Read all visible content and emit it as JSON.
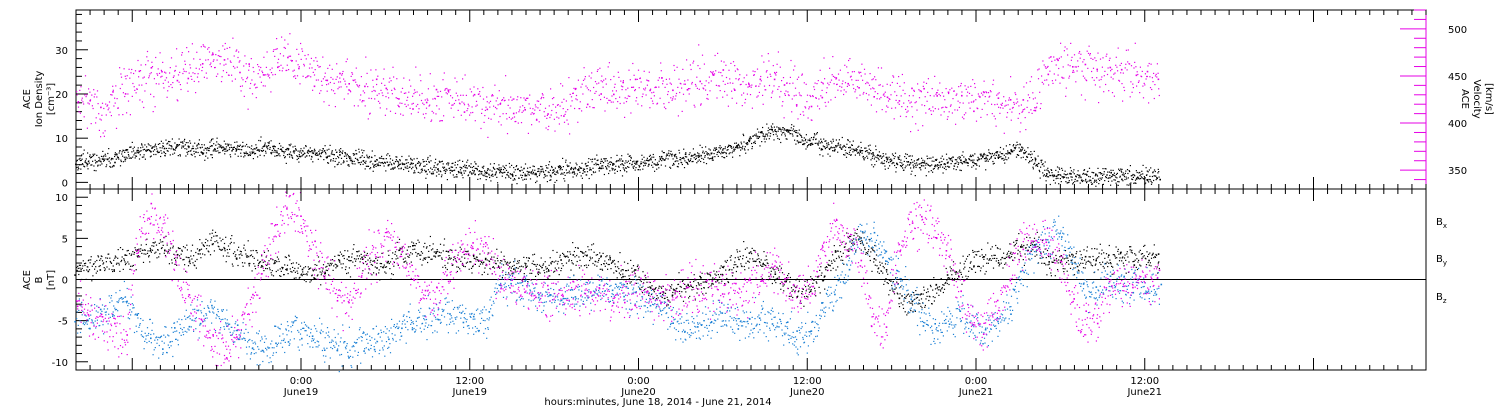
{
  "chart_data": [
    {
      "type": "scatter",
      "panel": "top",
      "left_axis_label_lines": [
        "ACE",
        "Ion Density",
        "[cm⁻³]"
      ],
      "right_axis_label_lines": [
        "ACE",
        "Velocity",
        "[km/s]"
      ],
      "ylim_left": [
        -1.5,
        39
      ],
      "ylim_right": [
        330,
        520
      ],
      "left_ticks": [
        "0",
        "10",
        "20",
        "30"
      ],
      "right_ticks": [
        "350",
        "400",
        "450",
        "500"
      ],
      "series": [
        {
          "axis": "left",
          "color": "#000000",
          "data_end_hour": 61,
          "values": [
            4.8,
            4.6,
            5.0,
            5.5,
            6.2,
            6.8,
            7.4,
            7.8,
            8.3,
            8.0,
            7.6,
            7.9,
            8.1,
            7.5,
            7.2,
            7.8,
            7.4,
            6.8,
            7.0,
            6.6,
            6.3,
            5.9,
            5.5,
            5.1,
            4.8,
            4.5,
            4.1,
            4.0,
            3.6,
            3.4,
            3.2,
            3.0,
            2.9,
            2.7,
            2.5,
            2.4,
            2.3,
            2.4,
            2.6,
            2.8,
            3.0,
            3.3,
            3.7,
            4.0,
            4.3,
            4.6,
            4.9,
            5.2,
            5.4,
            5.7,
            6.0,
            6.4,
            7.2,
            8.2,
            9.5,
            10.8,
            12.0,
            11.5,
            10.2,
            9.0,
            8.6,
            8.2,
            7.9,
            7.4,
            6.0,
            5.0,
            4.6,
            4.3,
            4.2,
            4.4,
            4.6,
            4.9,
            5.2,
            5.6,
            6.0,
            6.8,
            7.8,
            5.0,
            2.0,
            1.5,
            1.4,
            1.4,
            1.4,
            1.4,
            1.4,
            1.4,
            1.5,
            1.5
          ]
        },
        {
          "axis": "right",
          "color": "#e600e6",
          "data_end_hour": 61,
          "values": [
            430,
            420,
            412,
            425,
            438,
            444,
            448,
            452,
            455,
            460,
            462,
            465,
            470,
            458,
            452,
            455,
            465,
            470,
            460,
            452,
            447,
            445,
            440,
            437,
            436,
            432,
            430,
            428,
            425,
            426,
            424,
            422,
            421,
            419,
            417,
            415,
            414,
            413,
            412,
            418,
            425,
            432,
            436,
            438,
            437,
            435,
            436,
            439,
            441,
            445,
            448,
            452,
            446,
            440,
            442,
            444,
            447,
            441,
            431,
            424,
            438,
            444,
            445,
            441,
            437,
            433,
            430,
            427,
            426,
            425,
            424,
            423,
            424,
            422,
            420,
            421,
            415,
            425,
            450,
            462,
            460,
            458,
            456,
            455,
            453,
            452,
            450,
            450
          ]
        }
      ]
    },
    {
      "type": "scatter",
      "panel": "bottom",
      "y_axis_label_lines": [
        "ACE",
        "B",
        "[nT]"
      ],
      "ylim": [
        -11,
        11
      ],
      "ticks": [
        "-10",
        "-5",
        "0",
        "5",
        "10"
      ],
      "zero_line": true,
      "series": [
        {
          "name": "Bx",
          "label": "B",
          "subscript": "x",
          "color": "#000000",
          "data_end_hour": 61,
          "values": [
            1.0,
            1.5,
            2.0,
            1.8,
            2.5,
            3.2,
            3.8,
            4.2,
            3.0,
            2.5,
            3.6,
            4.5,
            4.0,
            3.2,
            2.8,
            2.0,
            1.6,
            1.2,
            1.0,
            0.8,
            1.2,
            1.8,
            2.6,
            2.4,
            2.0,
            1.8,
            3.2,
            3.5,
            3.4,
            3.0,
            2.8,
            2.5,
            2.3,
            2.2,
            2.0,
            1.8,
            1.6,
            1.5,
            1.8,
            2.2,
            2.6,
            2.8,
            2.4,
            2.0,
            1.2,
            0.5,
            -0.8,
            -1.5,
            -1.2,
            -1.0,
            -0.5,
            0.2,
            1.0,
            2.0,
            3.0,
            2.2,
            1.0,
            -0.5,
            -1.5,
            -0.8,
            0.5,
            2.8,
            4.2,
            4.8,
            3.0,
            0.5,
            -1.5,
            -2.8,
            -2.2,
            -1.2,
            0.0,
            1.0,
            2.0,
            2.5,
            2.8,
            3.2,
            3.8,
            4.2,
            2.0,
            2.2,
            2.4,
            2.6,
            2.5,
            2.6,
            2.7,
            2.6,
            2.5,
            2.4
          ]
        },
        {
          "name": "By",
          "label": "B",
          "subscript": "y",
          "color": "#1a7fd4",
          "data_end_hour": 61,
          "values": [
            -4.5,
            -5.0,
            -4.0,
            -3.5,
            -2.5,
            -5.0,
            -6.8,
            -7.5,
            -6.5,
            -5.0,
            -4.5,
            -4.0,
            -5.0,
            -6.0,
            -8.0,
            -8.5,
            -7.5,
            -6.5,
            -6.0,
            -7.0,
            -7.5,
            -8.0,
            -8.5,
            -7.8,
            -7.5,
            -6.8,
            -6.0,
            -5.0,
            -4.5,
            -4.2,
            -4.0,
            -4.3,
            -4.8,
            -4.5,
            0.0,
            -0.5,
            -1.2,
            -1.8,
            -2.0,
            -1.8,
            -1.5,
            -1.2,
            -1.0,
            -1.2,
            -1.6,
            -2.0,
            -2.5,
            -3.0,
            -5.0,
            -6.2,
            -5.5,
            -4.8,
            -4.5,
            -5.0,
            -5.5,
            -4.8,
            -5.2,
            -5.8,
            -7.0,
            -6.0,
            -3.5,
            -1.0,
            2.0,
            5.5,
            5.0,
            3.0,
            0.5,
            -2.5,
            -4.5,
            -6.0,
            -5.0,
            -4.0,
            -5.5,
            -6.8,
            -5.2,
            -3.5,
            0.5,
            3.5,
            5.0,
            5.5,
            3.0,
            -1.5,
            -1.0,
            -0.5,
            -0.5,
            -0.6,
            -0.8,
            -1.0
          ]
        },
        {
          "name": "Bz",
          "label": "B",
          "subscript": "z",
          "color": "#e600e6",
          "data_end_hour": 61,
          "values": [
            -2.5,
            -4.0,
            -5.0,
            -6.5,
            -7.0,
            5.0,
            8.0,
            6.0,
            2.0,
            -2.0,
            -5.0,
            -8.0,
            -9.0,
            -7.0,
            -3.0,
            2.0,
            6.0,
            9.5,
            8.0,
            4.0,
            1.0,
            -2.0,
            -4.0,
            1.0,
            3.0,
            5.0,
            3.5,
            0.5,
            -2.5,
            -1.5,
            1.0,
            3.0,
            4.5,
            3.5,
            0.0,
            -0.5,
            -1.0,
            -1.5,
            -2.0,
            -1.8,
            -1.5,
            -1.2,
            -1.5,
            -1.8,
            -2.0,
            -1.8,
            -1.5,
            -1.8,
            -2.0,
            -1.5,
            -1.0,
            -0.8,
            -1.2,
            -1.5,
            -1.0,
            0.5,
            2.0,
            0.0,
            -2.0,
            -1.0,
            3.0,
            6.5,
            5.0,
            2.0,
            -4.5,
            -6.0,
            3.0,
            6.0,
            7.5,
            6.0,
            3.0,
            -2.0,
            -5.0,
            -6.0,
            -3.0,
            1.0,
            4.0,
            5.5,
            5.0,
            2.5,
            -3.0,
            -5.0,
            -4.8,
            -0.6,
            -0.4,
            -0.3,
            -0.2,
            -0.1
          ]
        }
      ]
    }
  ],
  "x_axis": {
    "hours_range": [
      -16,
      80
    ],
    "tick_labels": [
      {
        "hour": 0,
        "time": "0:00",
        "date": "June19"
      },
      {
        "hour": 12,
        "time": "12:00",
        "date": "June19"
      },
      {
        "hour": 24,
        "time": "0:00",
        "date": "June20"
      },
      {
        "hour": 36,
        "time": "12:00",
        "date": "June20"
      },
      {
        "hour": 48,
        "time": "0:00",
        "date": "June21"
      },
      {
        "hour": 60,
        "time": "12:00",
        "date": "June21"
      }
    ],
    "xlabel": "hours:minutes, June 18, 2014 - June 21, 2014"
  }
}
